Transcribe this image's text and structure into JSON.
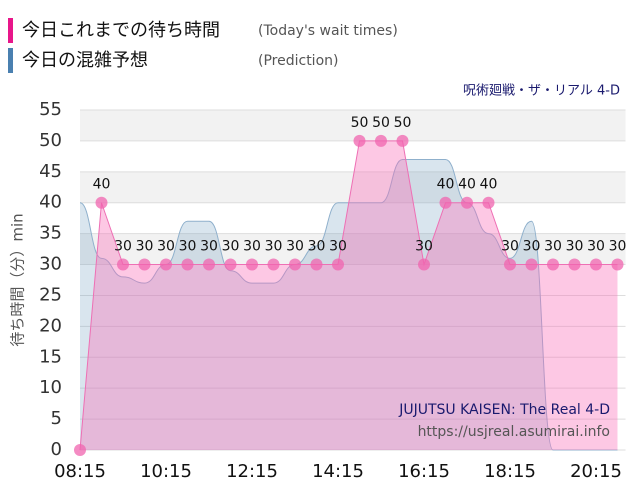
{
  "chart_data": {
    "type": "area",
    "legend_items": [
      {
        "name": "今日これまでの待ち時間",
        "note": "(Today's wait times)",
        "color": "#e8168a"
      },
      {
        "name": "今日の混雑予想",
        "note": "(Prediction)",
        "color": "#4a80b0"
      }
    ],
    "subtitle": "呪術廻戦・ザ・リアル 4-D",
    "y_label": "待ち時間（分）min",
    "watermark": [
      "JUJUTSU KAISEN: The Real 4-D",
      "https://usjreal.asumirai.info"
    ],
    "x": [
      "08:15",
      null,
      null,
      null,
      "10:15",
      null,
      null,
      null,
      "12:15",
      null,
      null,
      null,
      "14:15",
      null,
      null,
      null,
      "16:15",
      null,
      null,
      null,
      "18:15",
      null,
      null,
      null,
      "20:15",
      null
    ],
    "series": [
      {
        "name": "今日の混雑予想",
        "color": "#8fb0cc",
        "fill": "rgba(120,160,195,0.28)",
        "smooth": true,
        "values": [
          40,
          31,
          28,
          27,
          30,
          37,
          37,
          29,
          27,
          27,
          30,
          33,
          40,
          40,
          40,
          47,
          47,
          47,
          40,
          35,
          31,
          37,
          0,
          0,
          0,
          0
        ]
      },
      {
        "name": "今日これまでの待ち時間",
        "color": "#ee6fb4",
        "fill": "rgba(250,110,185,0.38)",
        "smooth": false,
        "markers": true,
        "labels": true,
        "values": [
          0,
          40,
          30,
          30,
          30,
          30,
          30,
          30,
          30,
          30,
          30,
          30,
          30,
          50,
          50,
          50,
          30,
          40,
          40,
          40,
          30,
          30,
          30,
          30,
          30,
          30
        ]
      }
    ],
    "ylim": [
      0,
      55
    ],
    "yticks": [
      0,
      5,
      10,
      15,
      20,
      25,
      30,
      35,
      40,
      45,
      50,
      55
    ],
    "grid": true
  }
}
